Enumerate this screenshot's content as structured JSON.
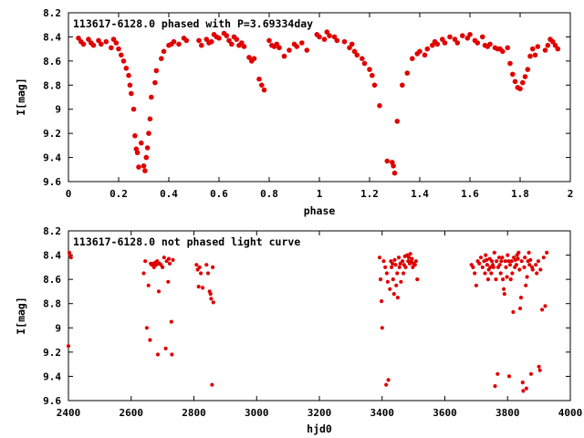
{
  "chart_data": [
    {
      "type": "scatter",
      "title": "113617-6128.0 phased with P=3.69334day",
      "xlabel": "phase",
      "ylabel": "I[mag]",
      "xlim": [
        0,
        2
      ],
      "ylim": [
        8.2,
        9.6
      ],
      "y_inverted": true,
      "xticks": [
        0,
        0.2,
        0.4,
        0.6,
        0.8,
        1,
        1.2,
        1.4,
        1.6,
        1.8,
        2
      ],
      "yticks": [
        8.2,
        8.4,
        8.6,
        8.8,
        9,
        9.2,
        9.4,
        9.6
      ],
      "marker_color": "#e00000",
      "points": [
        [
          0.04,
          8.41
        ],
        [
          0.05,
          8.44
        ],
        [
          0.06,
          8.46
        ],
        [
          0.08,
          8.42
        ],
        [
          0.09,
          8.45
        ],
        [
          0.1,
          8.47
        ],
        [
          0.12,
          8.43
        ],
        [
          0.13,
          8.46
        ],
        [
          0.15,
          8.44
        ],
        [
          0.17,
          8.49
        ],
        [
          0.18,
          8.42
        ],
        [
          0.19,
          8.45
        ],
        [
          0.2,
          8.5
        ],
        [
          0.21,
          8.55
        ],
        [
          0.22,
          8.6
        ],
        [
          0.23,
          8.66
        ],
        [
          0.24,
          8.72
        ],
        [
          0.245,
          8.8
        ],
        [
          0.25,
          8.87
        ],
        [
          0.26,
          9.0
        ],
        [
          0.265,
          9.22
        ],
        [
          0.27,
          9.33
        ],
        [
          0.275,
          9.36
        ],
        [
          0.28,
          9.48
        ],
        [
          0.29,
          9.28
        ],
        [
          0.3,
          9.47
        ],
        [
          0.305,
          9.51
        ],
        [
          0.31,
          9.4
        ],
        [
          0.315,
          9.32
        ],
        [
          0.32,
          9.2
        ],
        [
          0.325,
          9.08
        ],
        [
          0.33,
          8.9
        ],
        [
          0.345,
          8.78
        ],
        [
          0.35,
          8.68
        ],
        [
          0.37,
          8.58
        ],
        [
          0.38,
          8.52
        ],
        [
          0.4,
          8.47
        ],
        [
          0.41,
          8.46
        ],
        [
          0.42,
          8.44
        ],
        [
          0.44,
          8.46
        ],
        [
          0.46,
          8.41
        ],
        [
          0.47,
          8.43
        ],
        [
          0.52,
          8.43
        ],
        [
          0.53,
          8.47
        ],
        [
          0.55,
          8.42
        ],
        [
          0.56,
          8.45
        ],
        [
          0.57,
          8.44
        ],
        [
          0.58,
          8.38
        ],
        [
          0.59,
          8.4
        ],
        [
          0.6,
          8.41
        ],
        [
          0.62,
          8.37
        ],
        [
          0.63,
          8.39
        ],
        [
          0.64,
          8.43
        ],
        [
          0.65,
          8.46
        ],
        [
          0.66,
          8.4
        ],
        [
          0.67,
          8.42
        ],
        [
          0.68,
          8.47
        ],
        [
          0.69,
          8.45
        ],
        [
          0.7,
          8.48
        ],
        [
          0.72,
          8.57
        ],
        [
          0.73,
          8.6
        ],
        [
          0.74,
          8.58
        ],
        [
          0.76,
          8.75
        ],
        [
          0.77,
          8.8
        ],
        [
          0.78,
          8.84
        ],
        [
          0.8,
          8.43
        ],
        [
          0.81,
          8.47
        ],
        [
          0.82,
          8.48
        ],
        [
          0.83,
          8.46
        ],
        [
          0.84,
          8.49
        ],
        [
          0.86,
          8.56
        ],
        [
          0.88,
          8.51
        ],
        [
          0.9,
          8.46
        ],
        [
          0.91,
          8.48
        ],
        [
          0.93,
          8.45
        ],
        [
          0.95,
          8.51
        ],
        [
          0.99,
          8.38
        ],
        [
          1.0,
          8.4
        ],
        [
          1.02,
          8.42
        ],
        [
          1.03,
          8.36
        ],
        [
          1.04,
          8.39
        ],
        [
          1.06,
          8.4
        ],
        [
          1.07,
          8.43
        ],
        [
          1.1,
          8.44
        ],
        [
          1.12,
          8.49
        ],
        [
          1.13,
          8.46
        ],
        [
          1.14,
          8.52
        ],
        [
          1.15,
          8.55
        ],
        [
          1.17,
          8.58
        ],
        [
          1.18,
          8.62
        ],
        [
          1.2,
          8.67
        ],
        [
          1.21,
          8.72
        ],
        [
          1.22,
          8.8
        ],
        [
          1.24,
          8.97
        ],
        [
          1.27,
          9.43
        ],
        [
          1.29,
          9.44
        ],
        [
          1.295,
          9.47
        ],
        [
          1.3,
          9.53
        ],
        [
          1.31,
          9.1
        ],
        [
          1.33,
          8.8
        ],
        [
          1.35,
          8.7
        ],
        [
          1.37,
          8.58
        ],
        [
          1.39,
          8.54
        ],
        [
          1.4,
          8.52
        ],
        [
          1.42,
          8.55
        ],
        [
          1.43,
          8.5
        ],
        [
          1.45,
          8.47
        ],
        [
          1.46,
          8.44
        ],
        [
          1.47,
          8.46
        ],
        [
          1.49,
          8.42
        ],
        [
          1.5,
          8.45
        ],
        [
          1.52,
          8.4
        ],
        [
          1.54,
          8.42
        ],
        [
          1.55,
          8.45
        ],
        [
          1.57,
          8.39
        ],
        [
          1.59,
          8.41
        ],
        [
          1.6,
          8.38
        ],
        [
          1.62,
          8.43
        ],
        [
          1.63,
          8.45
        ],
        [
          1.65,
          8.4
        ],
        [
          1.66,
          8.47
        ],
        [
          1.67,
          8.48
        ],
        [
          1.68,
          8.46
        ],
        [
          1.7,
          8.49
        ],
        [
          1.71,
          8.5
        ],
        [
          1.72,
          8.5
        ],
        [
          1.73,
          8.52
        ],
        [
          1.75,
          8.49
        ],
        [
          1.76,
          8.62
        ],
        [
          1.77,
          8.71
        ],
        [
          1.78,
          8.77
        ],
        [
          1.79,
          8.82
        ],
        [
          1.8,
          8.83
        ],
        [
          1.81,
          8.78
        ],
        [
          1.82,
          8.73
        ],
        [
          1.83,
          8.67
        ],
        [
          1.84,
          8.56
        ],
        [
          1.85,
          8.5
        ],
        [
          1.86,
          8.55
        ],
        [
          1.87,
          8.48
        ],
        [
          1.9,
          8.51
        ],
        [
          1.91,
          8.47
        ],
        [
          1.92,
          8.42
        ],
        [
          1.93,
          8.44
        ],
        [
          1.94,
          8.47
        ],
        [
          1.95,
          8.5
        ]
      ]
    },
    {
      "type": "scatter",
      "title": "113617-6128.0 not phased light curve",
      "xlabel": "hjd0",
      "ylabel": "I[mag]",
      "xlim": [
        2400,
        4000
      ],
      "ylim": [
        8.2,
        9.6
      ],
      "y_inverted": true,
      "xticks": [
        2400,
        2600,
        2800,
        3000,
        3200,
        3400,
        3600,
        3800,
        4000
      ],
      "yticks": [
        8.2,
        8.4,
        8.6,
        8.8,
        9,
        9.2,
        9.4,
        9.6
      ],
      "marker_color": "#e00000",
      "points": [
        [
          2403,
          8.38
        ],
        [
          2405,
          8.4
        ],
        [
          2408,
          8.42
        ],
        [
          2400,
          9.15
        ],
        [
          2640,
          8.55
        ],
        [
          2645,
          8.45
        ],
        [
          2650,
          9.0
        ],
        [
          2655,
          8.65
        ],
        [
          2660,
          9.1
        ],
        [
          2662,
          8.47
        ],
        [
          2665,
          8.48
        ],
        [
          2670,
          8.47
        ],
        [
          2673,
          8.5
        ],
        [
          2675,
          8.47
        ],
        [
          2678,
          8.46
        ],
        [
          2680,
          8.48
        ],
        [
          2683,
          8.45
        ],
        [
          2685,
          9.22
        ],
        [
          2688,
          8.7
        ],
        [
          2690,
          8.47
        ],
        [
          2695,
          8.48
        ],
        [
          2700,
          8.5
        ],
        [
          2705,
          8.42
        ],
        [
          2710,
          9.17
        ],
        [
          2713,
          8.45
        ],
        [
          2718,
          8.62
        ],
        [
          2720,
          8.43
        ],
        [
          2723,
          8.47
        ],
        [
          2728,
          8.95
        ],
        [
          2730,
          9.22
        ],
        [
          2733,
          8.44
        ],
        [
          2808,
          8.48
        ],
        [
          2812,
          8.52
        ],
        [
          2815,
          8.66
        ],
        [
          2818,
          8.5
        ],
        [
          2822,
          8.55
        ],
        [
          2828,
          8.67
        ],
        [
          2840,
          8.48
        ],
        [
          2845,
          8.55
        ],
        [
          2850,
          8.7
        ],
        [
          2853,
          8.72
        ],
        [
          2855,
          8.76
        ],
        [
          2858,
          9.47
        ],
        [
          2860,
          8.5
        ],
        [
          2862,
          8.79
        ],
        [
          3392,
          8.42
        ],
        [
          3395,
          8.6
        ],
        [
          3398,
          8.78
        ],
        [
          3400,
          9.0
        ],
        [
          3405,
          8.45
        ],
        [
          3410,
          8.5
        ],
        [
          3413,
          9.47
        ],
        [
          3415,
          8.55
        ],
        [
          3418,
          8.62
        ],
        [
          3420,
          9.43
        ],
        [
          3425,
          8.68
        ],
        [
          3428,
          8.45
        ],
        [
          3430,
          8.5
        ],
        [
          3433,
          8.47
        ],
        [
          3435,
          8.6
        ],
        [
          3438,
          8.72
        ],
        [
          3440,
          8.44
        ],
        [
          3443,
          8.48
        ],
        [
          3445,
          8.65
        ],
        [
          3448,
          8.55
        ],
        [
          3450,
          8.75
        ],
        [
          3453,
          8.42
        ],
        [
          3455,
          8.5
        ],
        [
          3458,
          8.47
        ],
        [
          3460,
          8.62
        ],
        [
          3465,
          8.45
        ],
        [
          3468,
          8.55
        ],
        [
          3470,
          8.48
        ],
        [
          3473,
          8.41
        ],
        [
          3475,
          8.5
        ],
        [
          3480,
          8.4
        ],
        [
          3483,
          8.45
        ],
        [
          3485,
          8.42
        ],
        [
          3488,
          8.47
        ],
        [
          3490,
          8.39
        ],
        [
          3493,
          8.45
        ],
        [
          3495,
          8.43
        ],
        [
          3498,
          8.5
        ],
        [
          3500,
          8.47
        ],
        [
          3505,
          8.48
        ],
        [
          3508,
          8.45
        ],
        [
          3512,
          8.6
        ],
        [
          3685,
          8.48
        ],
        [
          3690,
          8.5
        ],
        [
          3695,
          8.55
        ],
        [
          3700,
          8.65
        ],
        [
          3705,
          8.45
        ],
        [
          3710,
          8.47
        ],
        [
          3715,
          8.42
        ],
        [
          3720,
          8.5
        ],
        [
          3725,
          8.45
        ],
        [
          3728,
          8.55
        ],
        [
          3730,
          8.4
        ],
        [
          3733,
          8.44
        ],
        [
          3735,
          8.48
        ],
        [
          3738,
          8.6
        ],
        [
          3740,
          8.52
        ],
        [
          3743,
          8.43
        ],
        [
          3745,
          8.5
        ],
        [
          3748,
          8.55
        ],
        [
          3750,
          8.45
        ],
        [
          3753,
          8.48
        ],
        [
          3755,
          8.5
        ],
        [
          3758,
          8.38
        ],
        [
          3760,
          9.48
        ],
        [
          3763,
          8.6
        ],
        [
          3765,
          8.45
        ],
        [
          3768,
          9.38
        ],
        [
          3770,
          8.5
        ],
        [
          3773,
          8.42
        ],
        [
          3775,
          8.48
        ],
        [
          3778,
          8.55
        ],
        [
          3780,
          8.45
        ],
        [
          3783,
          8.42
        ],
        [
          3785,
          8.6
        ],
        [
          3788,
          8.68
        ],
        [
          3790,
          8.72
        ],
        [
          3793,
          8.45
        ],
        [
          3795,
          8.5
        ],
        [
          3798,
          8.58
        ],
        [
          3800,
          8.4
        ],
        [
          3803,
          8.45
        ],
        [
          3805,
          9.4
        ],
        [
          3808,
          8.48
        ],
        [
          3810,
          8.6
        ],
        [
          3813,
          8.45
        ],
        [
          3815,
          8.55
        ],
        [
          3818,
          8.87
        ],
        [
          3820,
          8.42
        ],
        [
          3823,
          8.5
        ],
        [
          3825,
          8.44
        ],
        [
          3828,
          8.48
        ],
        [
          3830,
          8.4
        ],
        [
          3833,
          8.43
        ],
        [
          3835,
          8.38
        ],
        [
          3838,
          8.52
        ],
        [
          3840,
          8.84
        ],
        [
          3843,
          8.75
        ],
        [
          3845,
          8.45
        ],
        [
          3848,
          9.45
        ],
        [
          3850,
          9.52
        ],
        [
          3853,
          8.5
        ],
        [
          3855,
          8.42
        ],
        [
          3858,
          8.65
        ],
        [
          3860,
          9.5
        ],
        [
          3862,
          8.58
        ],
        [
          3865,
          8.45
        ],
        [
          3868,
          8.38
        ],
        [
          3870,
          8.48
        ],
        [
          3873,
          8.44
        ],
        [
          3875,
          9.38
        ],
        [
          3878,
          8.5
        ],
        [
          3880,
          8.52
        ],
        [
          3890,
          8.48
        ],
        [
          3893,
          8.55
        ],
        [
          3898,
          8.45
        ],
        [
          3900,
          9.32
        ],
        [
          3903,
          9.35
        ],
        [
          3905,
          8.52
        ],
        [
          3910,
          8.85
        ],
        [
          3915,
          8.42
        ],
        [
          3920,
          8.82
        ],
        [
          3925,
          8.38
        ]
      ]
    }
  ]
}
